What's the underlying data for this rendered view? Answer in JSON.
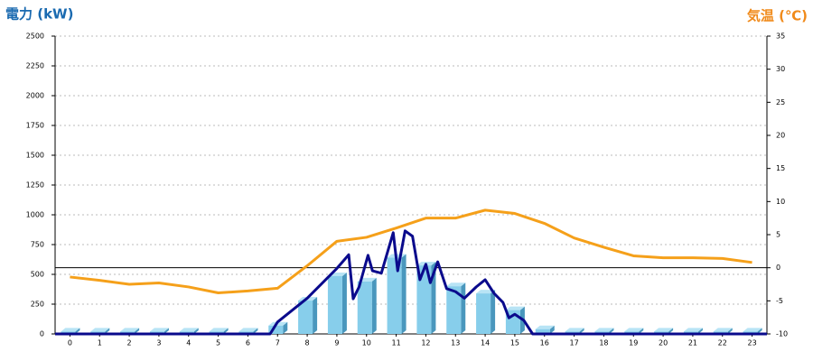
{
  "chart_data": {
    "type": "bar",
    "y_label": "電力 (kW)",
    "y2_label": "気温 (℃)",
    "categories": [
      "0",
      "1",
      "2",
      "3",
      "4",
      "5",
      "6",
      "7",
      "8",
      "9",
      "10",
      "11",
      "12",
      "13",
      "14",
      "15",
      "16",
      "17",
      "18",
      "19",
      "20",
      "21",
      "22",
      "23"
    ],
    "series": [
      {
        "type": "bar",
        "color": "#87ceeb",
        "values": [
          20,
          20,
          20,
          20,
          20,
          20,
          20,
          70,
          280,
          485,
          440,
          640,
          575,
          400,
          340,
          200,
          40,
          20,
          20,
          20,
          20,
          20,
          20,
          20
        ]
      },
      {
        "type": "line",
        "color": "#0a0a8c",
        "x": [
          -0.5,
          6.75,
          7.0,
          8.0,
          9.0,
          9.4,
          9.55,
          9.75,
          10.05,
          10.2,
          10.5,
          10.9,
          11.05,
          11.3,
          11.55,
          11.8,
          12.0,
          12.15,
          12.4,
          12.7,
          13.0,
          13.3,
          13.7,
          14.0,
          14.3,
          14.6,
          14.8,
          15.0,
          15.3,
          15.6,
          23.5
        ],
        "values": [
          0,
          0,
          100,
          300,
          550,
          665,
          295,
          395,
          660,
          530,
          510,
          850,
          530,
          865,
          820,
          455,
          585,
          430,
          605,
          380,
          355,
          300,
          395,
          455,
          340,
          265,
          135,
          165,
          115,
          0,
          0
        ]
      },
      {
        "type": "line",
        "axis": "y2",
        "color": "#f5a01a",
        "values": [
          -1.4,
          -1.9,
          -2.5,
          -2.3,
          -2.9,
          -3.8,
          -3.5,
          -3.1,
          0.3,
          4.0,
          4.6,
          6.0,
          7.5,
          7.5,
          8.7,
          8.2,
          6.7,
          4.5,
          3.1,
          1.8,
          1.5,
          1.5,
          1.4,
          0.8
        ]
      }
    ],
    "ylim": [
      0,
      2500
    ],
    "yticks": [
      0,
      250,
      500,
      750,
      1000,
      1250,
      1500,
      1750,
      2000,
      2250,
      2500
    ],
    "y2lim": [
      -10,
      35
    ],
    "y2ticks": [
      -10,
      -5,
      0,
      5,
      10,
      15,
      20,
      25,
      30,
      35
    ],
    "y2_reference_line": 0,
    "grid": true
  }
}
